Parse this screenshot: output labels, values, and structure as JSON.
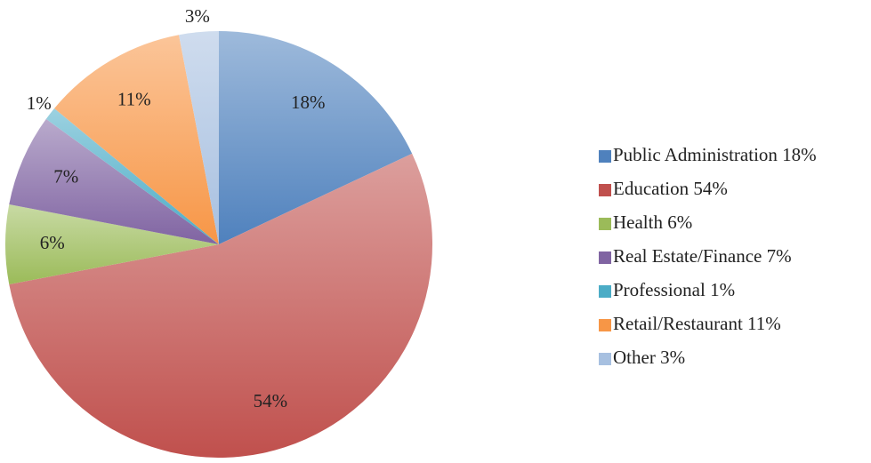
{
  "chart_data": {
    "type": "pie",
    "categories": [
      "Public Administration 18%",
      "Education 54%",
      "Health 6%",
      "Real Estate/Finance 7%",
      "Professional 1%",
      "Retail/Restaurant 11%",
      "Other 3%"
    ],
    "values": [
      18,
      54,
      6,
      7,
      1,
      11,
      3
    ],
    "value_labels": [
      "18%",
      "54%",
      "6%",
      "7%",
      "1%",
      "11%",
      "3%"
    ],
    "colors": [
      "#4f81bd",
      "#c0504d",
      "#9bbb59",
      "#8064a2",
      "#4bacc6",
      "#f79646",
      "#a7c0e0"
    ],
    "legend": "right"
  }
}
